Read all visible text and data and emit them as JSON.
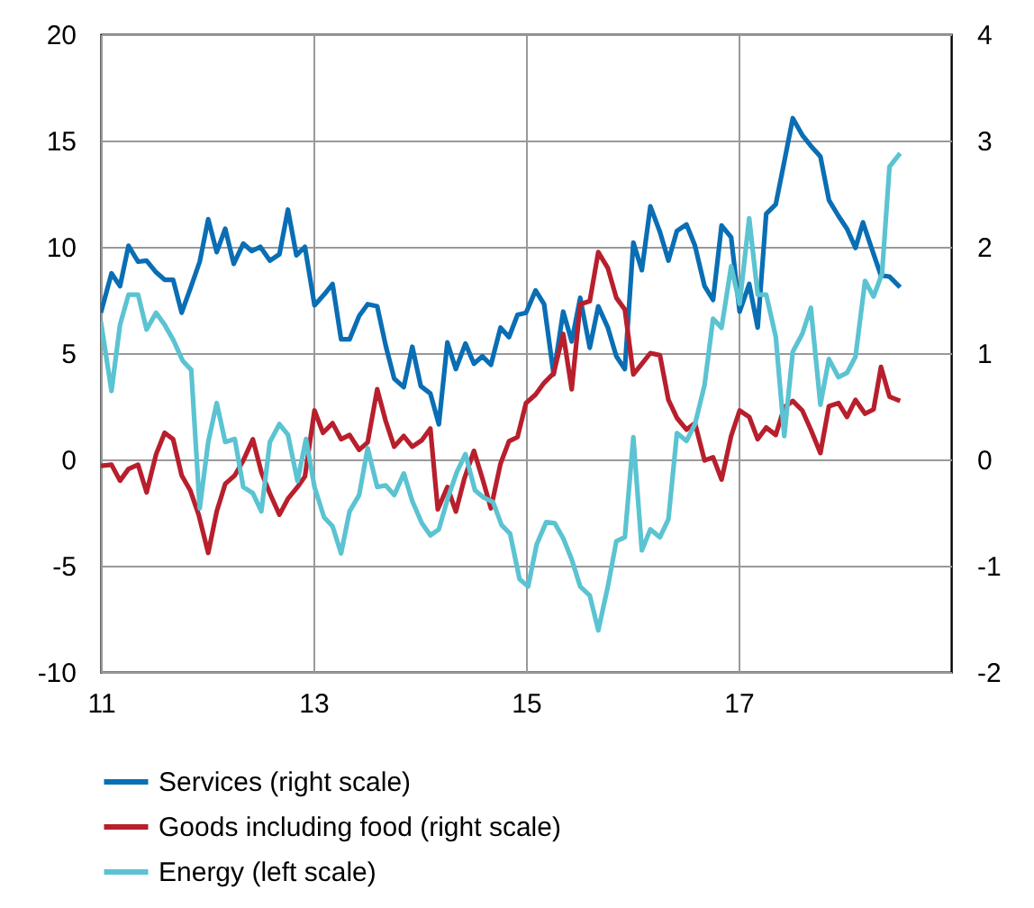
{
  "chart_data": {
    "type": "line",
    "xlim": [
      11,
      19
    ],
    "xticks": [
      11,
      13,
      15,
      17
    ],
    "ylim": [
      -10,
      20
    ],
    "yticks": [
      -10,
      -5,
      0,
      5,
      10,
      15,
      20
    ],
    "y2lim": [
      -2,
      4
    ],
    "y2ticks": [
      -2,
      -1,
      0,
      1,
      2,
      3,
      4
    ],
    "grid": true,
    "legend": "bottom",
    "series": [
      {
        "name": "Services (right scale)",
        "color": "#0a6eb4",
        "axis": "y2",
        "x": [
          11.0,
          11.1,
          11.18,
          11.26,
          11.35,
          11.43,
          11.52,
          11.6,
          11.68,
          11.76,
          11.85,
          11.93,
          12.01,
          12.09,
          12.17,
          12.25,
          12.34,
          12.42,
          12.5,
          12.59,
          12.68,
          12.76,
          12.84,
          12.92,
          13.01,
          13.1,
          13.18,
          13.26,
          13.34,
          13.43,
          13.51,
          13.6,
          13.68,
          13.76,
          13.85,
          13.93,
          14.01,
          14.1,
          14.18,
          14.26,
          14.34,
          14.43,
          14.51,
          14.59,
          14.67,
          14.76,
          14.84,
          14.92,
          15.0,
          15.09,
          15.17,
          15.26,
          15.35,
          15.43,
          15.51,
          15.6,
          15.68,
          15.77,
          15.85,
          15.93,
          16.01,
          16.09,
          16.17,
          16.26,
          16.34,
          16.42,
          16.51,
          16.59,
          16.68,
          16.76,
          16.84,
          16.93,
          17.01,
          17.1,
          17.18,
          17.26,
          17.35,
          17.43,
          17.51,
          17.6,
          17.68,
          17.77,
          17.85,
          17.94,
          18.02,
          18.1,
          18.17,
          18.25,
          18.34,
          18.42,
          18.52
        ],
        "values": [
          1.38,
          1.75,
          1.63,
          2.01,
          1.86,
          1.87,
          1.76,
          1.69,
          1.69,
          1.38,
          1.63,
          1.86,
          2.26,
          1.95,
          2.17,
          1.84,
          2.03,
          1.96,
          2.0,
          1.87,
          1.93,
          2.35,
          1.92,
          2.0,
          1.45,
          1.55,
          1.65,
          1.13,
          1.13,
          1.35,
          1.46,
          1.44,
          1.07,
          0.76,
          0.68,
          1.06,
          0.69,
          0.62,
          0.33,
          1.1,
          0.85,
          1.09,
          0.9,
          0.97,
          0.89,
          1.24,
          1.15,
          1.36,
          1.38,
          1.59,
          1.46,
          0.8,
          1.39,
          1.11,
          1.52,
          1.05,
          1.44,
          1.24,
          0.97,
          0.85,
          2.04,
          1.78,
          2.38,
          2.14,
          1.87,
          2.15,
          2.21,
          2.01,
          1.63,
          1.5,
          2.2,
          2.09,
          1.39,
          1.65,
          1.24,
          2.31,
          2.4,
          2.8,
          3.21,
          3.05,
          2.95,
          2.85,
          2.44,
          2.29,
          2.17,
          1.99,
          2.23,
          1.99,
          1.73,
          1.72,
          1.62
        ]
      },
      {
        "name": "Goods including food (right scale)",
        "color": "#b81f2d",
        "axis": "y2",
        "x": [
          11.0,
          11.1,
          11.18,
          11.26,
          11.35,
          11.43,
          11.52,
          11.6,
          11.68,
          11.76,
          11.84,
          11.92,
          12.01,
          12.09,
          12.17,
          12.26,
          12.34,
          12.43,
          12.51,
          12.59,
          12.68,
          12.76,
          12.85,
          12.92,
          13.01,
          13.09,
          13.18,
          13.26,
          13.34,
          13.43,
          13.51,
          13.6,
          13.68,
          13.76,
          13.85,
          13.93,
          14.02,
          14.1,
          14.17,
          14.26,
          14.34,
          14.42,
          14.51,
          14.59,
          14.67,
          14.76,
          14.84,
          14.92,
          15.0,
          15.09,
          15.17,
          15.26,
          15.35,
          15.43,
          15.51,
          15.6,
          15.68,
          15.77,
          15.85,
          15.93,
          16.01,
          16.09,
          16.17,
          16.26,
          16.34,
          16.42,
          16.51,
          16.59,
          16.68,
          16.76,
          16.84,
          16.93,
          17.01,
          17.1,
          17.18,
          17.26,
          17.35,
          17.43,
          17.51,
          17.6,
          17.68,
          17.77,
          17.85,
          17.94,
          18.02,
          18.1,
          18.19,
          18.27,
          18.34,
          18.42,
          18.52
        ],
        "values": [
          -0.06,
          -0.05,
          -0.2,
          -0.09,
          -0.05,
          -0.31,
          0.05,
          0.25,
          0.19,
          -0.15,
          -0.29,
          -0.52,
          -0.88,
          -0.49,
          -0.23,
          -0.15,
          -0.01,
          0.19,
          -0.12,
          -0.32,
          -0.52,
          -0.37,
          -0.26,
          -0.16,
          0.46,
          0.25,
          0.34,
          0.19,
          0.23,
          0.09,
          0.16,
          0.66,
          0.36,
          0.12,
          0.22,
          0.12,
          0.18,
          0.29,
          -0.47,
          -0.26,
          -0.49,
          -0.18,
          0.08,
          -0.18,
          -0.46,
          -0.04,
          0.17,
          0.21,
          0.53,
          0.61,
          0.72,
          0.81,
          1.18,
          0.66,
          1.46,
          1.49,
          1.95,
          1.8,
          1.52,
          1.41,
          0.8,
          0.9,
          1.0,
          0.98,
          0.56,
          0.39,
          0.28,
          0.34,
          -0.01,
          0.02,
          -0.19,
          0.22,
          0.46,
          0.4,
          0.19,
          0.3,
          0.23,
          0.49,
          0.55,
          0.46,
          0.28,
          0.06,
          0.5,
          0.53,
          0.4,
          0.56,
          0.43,
          0.47,
          0.87,
          0.59,
          0.55
        ]
      },
      {
        "name": "Energy (left scale)",
        "color": "#5bc3d1",
        "axis": "y",
        "x": [
          11.0,
          11.1,
          11.18,
          11.26,
          11.35,
          11.43,
          11.52,
          11.6,
          11.68,
          11.77,
          11.85,
          11.93,
          12.01,
          12.09,
          12.17,
          12.26,
          12.34,
          12.43,
          12.51,
          12.59,
          12.68,
          12.76,
          12.85,
          12.93,
          13.01,
          13.1,
          13.18,
          13.26,
          13.34,
          13.43,
          13.51,
          13.6,
          13.68,
          13.76,
          13.85,
          13.93,
          14.02,
          14.1,
          14.18,
          14.27,
          14.35,
          14.43,
          14.52,
          14.6,
          14.69,
          14.77,
          14.85,
          14.94,
          15.02,
          15.1,
          15.19,
          15.27,
          15.35,
          15.43,
          15.51,
          15.6,
          15.68,
          15.77,
          15.85,
          15.93,
          16.01,
          16.09,
          16.17,
          16.26,
          16.34,
          16.42,
          16.51,
          16.59,
          16.68,
          16.76,
          16.84,
          16.93,
          17.01,
          17.1,
          17.18,
          17.26,
          17.35,
          17.43,
          17.51,
          17.6,
          17.68,
          17.77,
          17.85,
          17.94,
          18.02,
          18.1,
          18.19,
          18.27,
          18.35,
          18.42,
          18.52
        ],
        "values": [
          6.47,
          3.22,
          6.33,
          7.75,
          7.75,
          6.11,
          6.9,
          6.33,
          5.63,
          4.64,
          4.21,
          -2.3,
          0.82,
          2.65,
          0.82,
          0.96,
          -1.3,
          -1.59,
          -2.44,
          0.82,
          1.66,
          1.16,
          -1.02,
          0.96,
          -1.3,
          -2.72,
          -3.15,
          -4.42,
          -2.44,
          -1.68,
          0.53,
          -1.3,
          -1.22,
          -1.68,
          -0.66,
          -1.96,
          -3.0,
          -3.57,
          -3.29,
          -1.73,
          -0.59,
          0.25,
          -1.45,
          -1.79,
          -2.01,
          -3.09,
          -3.49,
          -5.64,
          -5.98,
          -4.0,
          -2.95,
          -3.0,
          -3.71,
          -4.7,
          -5.98,
          -6.4,
          -8.04,
          -5.98,
          -3.85,
          -3.66,
          1.04,
          -4.28,
          -3.29,
          -3.66,
          -2.81,
          1.24,
          0.87,
          1.66,
          3.5,
          6.62,
          6.19,
          9.08,
          7.32,
          11.34,
          7.75,
          7.75,
          5.77,
          1.1,
          5.06,
          5.91,
          7.13,
          2.57,
          4.72,
          3.87,
          4.07,
          4.83,
          8.4,
          7.66,
          8.74,
          13.77,
          14.4
        ]
      }
    ]
  }
}
